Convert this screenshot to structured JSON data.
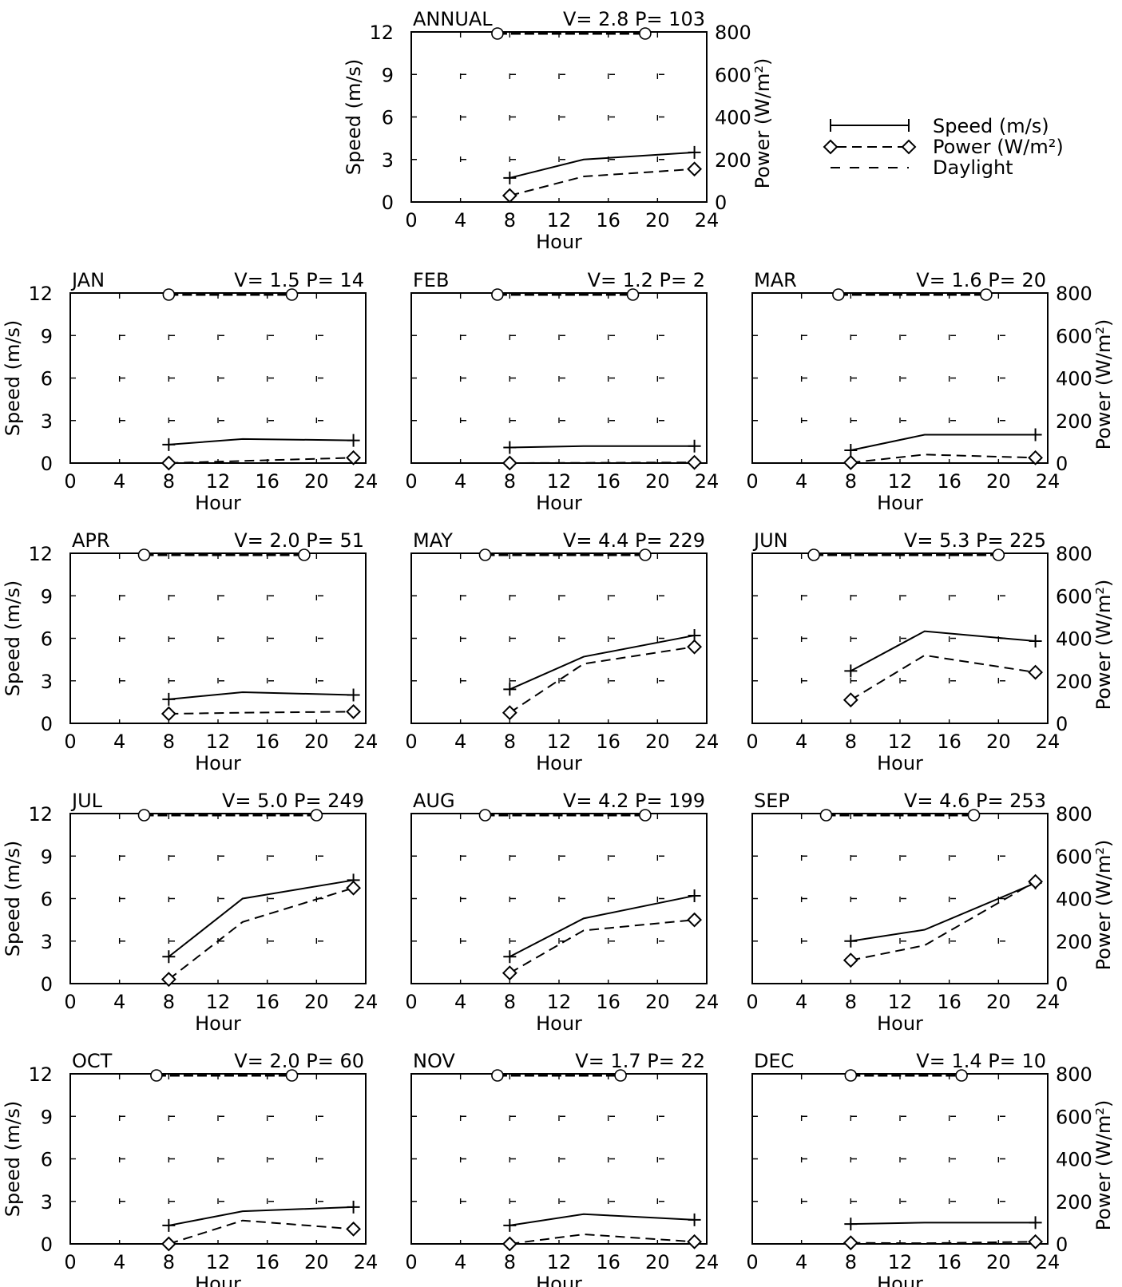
{
  "figure": {
    "legend": {
      "entries": [
        {
          "label": "Speed (m/s)",
          "style": "solid",
          "marker": "plus"
        },
        {
          "label": "Power (W/m²)",
          "style": "dashed",
          "marker": "diamond"
        },
        {
          "label": "Daylight",
          "style": "dashed",
          "marker": "none"
        }
      ]
    },
    "colors": {
      "ink": "#000000",
      "background": "#ffffff"
    }
  },
  "chart_data": [
    {
      "id": "annual",
      "type": "line",
      "title": "ANNUAL",
      "stat": "V=  2.8  P=  103",
      "x": [
        8,
        14,
        23
      ],
      "speed": [
        1.7,
        3.0,
        3.5
      ],
      "power": [
        30,
        120,
        155
      ],
      "daylight": [
        7,
        19
      ],
      "xlabel": "Hour",
      "ylabel": "Speed (m/s)",
      "y2label": "Power (W/m²)",
      "xlim": [
        0,
        24
      ],
      "ylim": [
        0,
        12
      ],
      "y2lim": [
        0,
        800
      ],
      "xticks": [
        0,
        4,
        8,
        12,
        16,
        20,
        24
      ],
      "yticks": [
        0,
        3,
        6,
        9,
        12
      ],
      "y2ticks": [
        0,
        200,
        400,
        600,
        800
      ],
      "show_left_axis": true,
      "show_right_axis": true
    },
    {
      "id": "jan",
      "type": "line",
      "title": "JAN",
      "stat": "V=  1.5  P=   14",
      "x": [
        8,
        14,
        23
      ],
      "speed": [
        1.3,
        1.7,
        1.6
      ],
      "power": [
        0,
        10,
        25
      ],
      "daylight": [
        8,
        18
      ],
      "xlabel": "Hour",
      "ylabel": "Speed (m/s)",
      "y2label": "",
      "xlim": [
        0,
        24
      ],
      "ylim": [
        0,
        12
      ],
      "y2lim": [
        0,
        800
      ],
      "xticks": [
        0,
        4,
        8,
        12,
        16,
        20,
        24
      ],
      "yticks": [
        0,
        3,
        6,
        9,
        12
      ],
      "y2ticks": [],
      "show_left_axis": true,
      "show_right_axis": false
    },
    {
      "id": "feb",
      "type": "line",
      "title": "FEB",
      "stat": "V=  1.2  P=    2",
      "x": [
        8,
        14,
        23
      ],
      "speed": [
        1.1,
        1.2,
        1.2
      ],
      "power": [
        0,
        1,
        3
      ],
      "daylight": [
        7,
        18
      ],
      "xlabel": "Hour",
      "ylabel": "",
      "y2label": "",
      "xlim": [
        0,
        24
      ],
      "ylim": [
        0,
        12
      ],
      "y2lim": [
        0,
        800
      ],
      "xticks": [
        0,
        4,
        8,
        12,
        16,
        20,
        24
      ],
      "yticks": [],
      "y2ticks": [],
      "show_left_axis": false,
      "show_right_axis": false
    },
    {
      "id": "mar",
      "type": "line",
      "title": "MAR",
      "stat": "V=  1.6  P=   20",
      "x": [
        8,
        14,
        23
      ],
      "speed": [
        0.9,
        2.0,
        2.0
      ],
      "power": [
        2,
        40,
        25
      ],
      "daylight": [
        7,
        19
      ],
      "xlabel": "Hour",
      "ylabel": "",
      "y2label": "Power (W/m²)",
      "xlim": [
        0,
        24
      ],
      "ylim": [
        0,
        12
      ],
      "y2lim": [
        0,
        800
      ],
      "xticks": [
        0,
        4,
        8,
        12,
        16,
        20,
        24
      ],
      "yticks": [],
      "y2ticks": [
        0,
        200,
        400,
        600,
        800
      ],
      "show_left_axis": false,
      "show_right_axis": true
    },
    {
      "id": "apr",
      "type": "line",
      "title": "APR",
      "stat": "V=  2.0  P=   51",
      "x": [
        8,
        14,
        23
      ],
      "speed": [
        1.7,
        2.2,
        2.0
      ],
      "power": [
        45,
        50,
        55
      ],
      "daylight": [
        6,
        19
      ],
      "xlabel": "Hour",
      "ylabel": "Speed (m/s)",
      "y2label": "",
      "xlim": [
        0,
        24
      ],
      "ylim": [
        0,
        12
      ],
      "y2lim": [
        0,
        800
      ],
      "xticks": [
        0,
        4,
        8,
        12,
        16,
        20,
        24
      ],
      "yticks": [
        0,
        3,
        6,
        9,
        12
      ],
      "y2ticks": [],
      "show_left_axis": true,
      "show_right_axis": false
    },
    {
      "id": "may",
      "type": "line",
      "title": "MAY",
      "stat": "V=  4.4  P=  229",
      "x": [
        8,
        14,
        23
      ],
      "speed": [
        2.4,
        4.7,
        6.2
      ],
      "power": [
        50,
        280,
        360
      ],
      "daylight": [
        6,
        19
      ],
      "xlabel": "Hour",
      "ylabel": "",
      "y2label": "",
      "xlim": [
        0,
        24
      ],
      "ylim": [
        0,
        12
      ],
      "y2lim": [
        0,
        800
      ],
      "xticks": [
        0,
        4,
        8,
        12,
        16,
        20,
        24
      ],
      "yticks": [],
      "y2ticks": [],
      "show_left_axis": false,
      "show_right_axis": false
    },
    {
      "id": "jun",
      "type": "line",
      "title": "JUN",
      "stat": "V=  5.3  P=  225",
      "x": [
        8,
        14,
        23
      ],
      "speed": [
        3.7,
        6.5,
        5.8
      ],
      "power": [
        110,
        320,
        240
      ],
      "daylight": [
        5,
        20
      ],
      "xlabel": "Hour",
      "ylabel": "",
      "y2label": "Power (W/m²)",
      "xlim": [
        0,
        24
      ],
      "ylim": [
        0,
        12
      ],
      "y2lim": [
        0,
        800
      ],
      "xticks": [
        0,
        4,
        8,
        12,
        16,
        20,
        24
      ],
      "yticks": [],
      "y2ticks": [
        0,
        200,
        400,
        600,
        800
      ],
      "show_left_axis": false,
      "show_right_axis": true
    },
    {
      "id": "jul",
      "type": "line",
      "title": "JUL",
      "stat": "V=  5.0  P=  249",
      "x": [
        8,
        14,
        23
      ],
      "speed": [
        1.9,
        6.0,
        7.3
      ],
      "power": [
        20,
        290,
        450
      ],
      "daylight": [
        6,
        20
      ],
      "xlabel": "Hour",
      "ylabel": "Speed (m/s)",
      "y2label": "",
      "xlim": [
        0,
        24
      ],
      "ylim": [
        0,
        12
      ],
      "y2lim": [
        0,
        800
      ],
      "xticks": [
        0,
        4,
        8,
        12,
        16,
        20,
        24
      ],
      "yticks": [
        0,
        3,
        6,
        9,
        12
      ],
      "y2ticks": [],
      "show_left_axis": true,
      "show_right_axis": false
    },
    {
      "id": "aug",
      "type": "line",
      "title": "AUG",
      "stat": "V=  4.2  P=  199",
      "x": [
        8,
        14,
        23
      ],
      "speed": [
        1.9,
        4.6,
        6.2
      ],
      "power": [
        50,
        250,
        300
      ],
      "daylight": [
        6,
        19
      ],
      "xlabel": "Hour",
      "ylabel": "",
      "y2label": "",
      "xlim": [
        0,
        24
      ],
      "ylim": [
        0,
        12
      ],
      "y2lim": [
        0,
        800
      ],
      "xticks": [
        0,
        4,
        8,
        12,
        16,
        20,
        24
      ],
      "yticks": [],
      "y2ticks": [],
      "show_left_axis": false,
      "show_right_axis": false
    },
    {
      "id": "sep",
      "type": "line",
      "title": "SEP",
      "stat": "V=  4.6  P=  253",
      "x": [
        8,
        14,
        23
      ],
      "speed": [
        3.0,
        3.8,
        7.1
      ],
      "power": [
        110,
        180,
        480
      ],
      "daylight": [
        6,
        18
      ],
      "xlabel": "Hour",
      "ylabel": "",
      "y2label": "Power (W/m²)",
      "xlim": [
        0,
        24
      ],
      "ylim": [
        0,
        12
      ],
      "y2lim": [
        0,
        800
      ],
      "xticks": [
        0,
        4,
        8,
        12,
        16,
        20,
        24
      ],
      "yticks": [],
      "y2ticks": [
        0,
        200,
        400,
        600,
        800
      ],
      "show_left_axis": false,
      "show_right_axis": true
    },
    {
      "id": "oct",
      "type": "line",
      "title": "OCT",
      "stat": "V=  2.0  P=   60",
      "x": [
        8,
        14,
        23
      ],
      "speed": [
        1.3,
        2.3,
        2.6
      ],
      "power": [
        0,
        110,
        70
      ],
      "daylight": [
        7,
        18
      ],
      "xlabel": "Hour",
      "ylabel": "Speed (m/s)",
      "y2label": "",
      "xlim": [
        0,
        24
      ],
      "ylim": [
        0,
        12
      ],
      "y2lim": [
        0,
        800
      ],
      "xticks": [
        0,
        4,
        8,
        12,
        16,
        20,
        24
      ],
      "yticks": [
        0,
        3,
        6,
        9,
        12
      ],
      "y2ticks": [],
      "show_left_axis": true,
      "show_right_axis": false
    },
    {
      "id": "nov",
      "type": "line",
      "title": "NOV",
      "stat": "V=  1.7  P=   22",
      "x": [
        8,
        14,
        23
      ],
      "speed": [
        1.3,
        2.1,
        1.7
      ],
      "power": [
        0,
        45,
        10
      ],
      "daylight": [
        7,
        17
      ],
      "xlabel": "Hour",
      "ylabel": "",
      "y2label": "",
      "xlim": [
        0,
        24
      ],
      "ylim": [
        0,
        12
      ],
      "y2lim": [
        0,
        800
      ],
      "xticks": [
        0,
        4,
        8,
        12,
        16,
        20,
        24
      ],
      "yticks": [],
      "y2ticks": [],
      "show_left_axis": false,
      "show_right_axis": false
    },
    {
      "id": "dec",
      "type": "line",
      "title": "DEC",
      "stat": "V=  1.4  P=   10",
      "x": [
        8,
        14,
        23
      ],
      "speed": [
        1.4,
        1.5,
        1.5
      ],
      "power": [
        5,
        3,
        10
      ],
      "daylight": [
        8,
        17
      ],
      "xlabel": "Hour",
      "ylabel": "",
      "y2label": "Power (W/m²)",
      "xlim": [
        0,
        24
      ],
      "ylim": [
        0,
        12
      ],
      "y2lim": [
        0,
        800
      ],
      "xticks": [
        0,
        4,
        8,
        12,
        16,
        20,
        24
      ],
      "yticks": [],
      "y2ticks": [
        0,
        200,
        400,
        600,
        800
      ],
      "show_left_axis": false,
      "show_right_axis": true
    }
  ]
}
